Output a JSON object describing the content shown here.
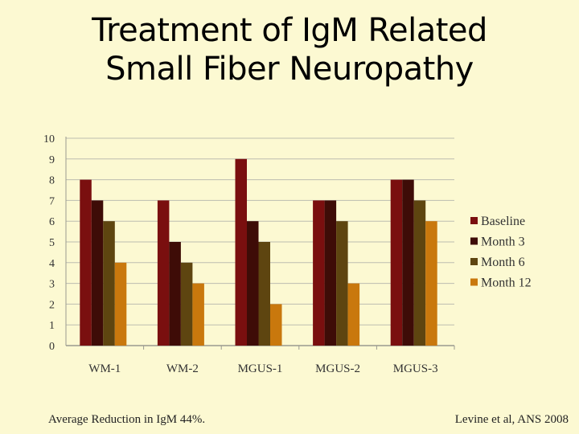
{
  "slide": {
    "title_line1": "Treatment of IgM Related",
    "title_line2": "Small Fiber Neuropathy",
    "footer_left": "Average Reduction in IgM 44%.",
    "footer_right": "Levine et al, ANS 2008"
  },
  "chart_data": {
    "type": "bar",
    "categories": [
      "WM-1",
      "WM-2",
      "MGUS-1",
      "MGUS-2",
      "MGUS-3"
    ],
    "series": [
      {
        "name": "Baseline",
        "values": [
          8,
          7,
          9,
          7,
          8
        ],
        "color": "#7A0F0F"
      },
      {
        "name": "Month 3",
        "values": [
          7,
          5,
          6,
          7,
          8
        ],
        "color": "#3E0C07"
      },
      {
        "name": "Month 6",
        "values": [
          6,
          4,
          5,
          6,
          7
        ],
        "color": "#5E4510"
      },
      {
        "name": "Month 12",
        "values": [
          4,
          3,
          2,
          3,
          6
        ],
        "color": "#C9780D"
      }
    ],
    "ylim": [
      0,
      10
    ],
    "yticks": [
      "0",
      "1",
      "2",
      "3",
      "4",
      "5",
      "6",
      "7",
      "8",
      "9",
      "10"
    ],
    "grid": true,
    "legend": "right"
  }
}
